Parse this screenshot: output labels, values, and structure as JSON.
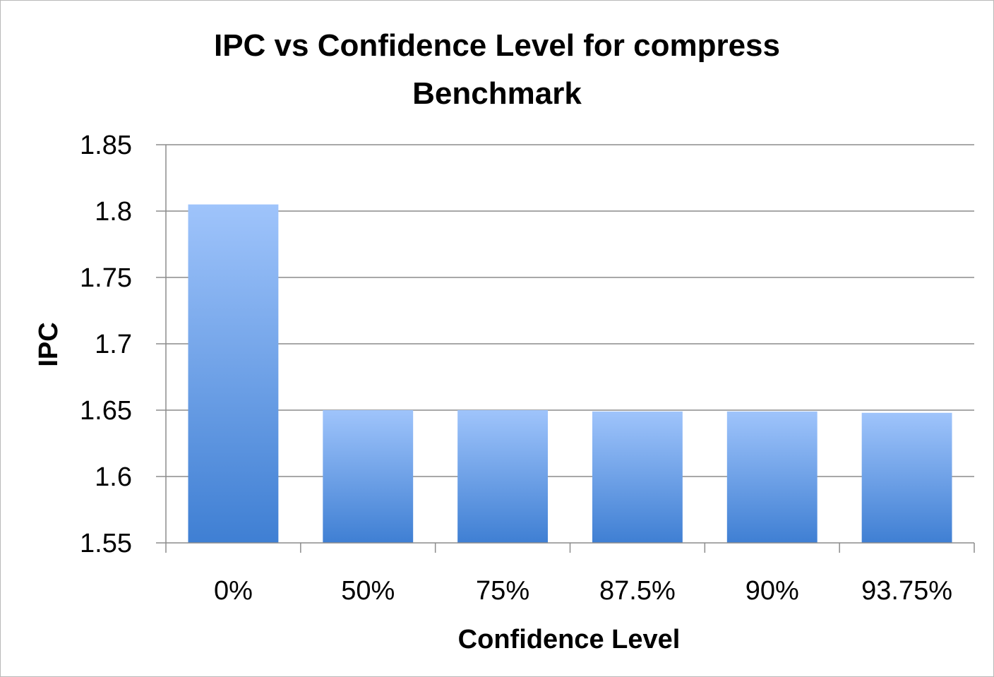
{
  "chart_data": {
    "type": "bar",
    "title_lines": [
      "IPC vs Confidence Level for compress",
      "Benchmark"
    ],
    "xlabel": "Confidence Level",
    "ylabel": "IPC",
    "categories": [
      "0%",
      "50%",
      "75%",
      "87.5%",
      "90%",
      "93.75%"
    ],
    "values": [
      1.805,
      1.65,
      1.65,
      1.649,
      1.649,
      1.648
    ],
    "ylim": [
      1.55,
      1.85
    ],
    "yticks": [
      1.55,
      1.6,
      1.65,
      1.7,
      1.75,
      1.8,
      1.85
    ],
    "ytick_labels": [
      "1.55",
      "1.6",
      "1.65",
      "1.7",
      "1.75",
      "1.8",
      "1.85"
    ],
    "grid": true,
    "legend": "none",
    "colors": {
      "bar_top": "#9fc4fb",
      "bar_bottom": "#3f7fd3",
      "grid": "#8c8c8c",
      "frame": "#b9b9b9"
    }
  }
}
